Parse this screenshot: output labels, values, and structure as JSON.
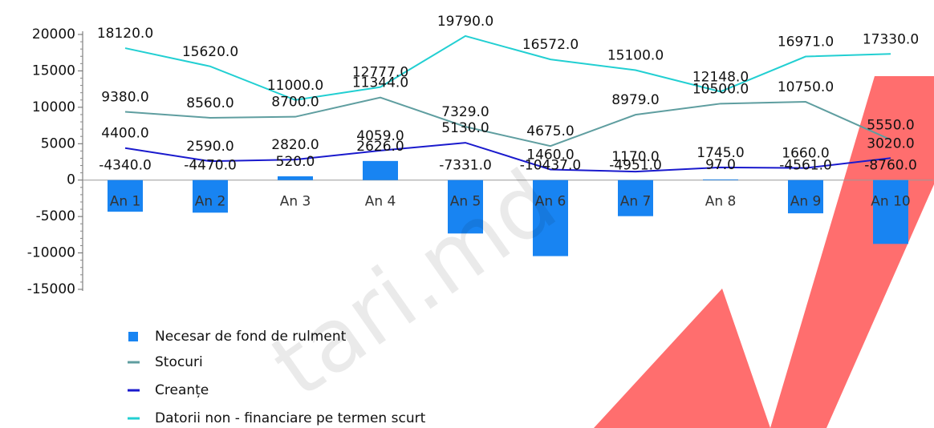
{
  "chart_data": {
    "type": "bar",
    "categories": [
      "An 1",
      "An 2",
      "An 3",
      "An 4",
      "An 5",
      "An 6",
      "An 7",
      "An 8",
      "An 9",
      "An 10"
    ],
    "series": [
      {
        "name": "Necesar de fond de rulment",
        "type": "bar",
        "color": "#1884f2",
        "values": [
          -4340,
          -4470,
          520,
          2626,
          -7331,
          -10437,
          -4951,
          97,
          -4561,
          -8760
        ],
        "value_labels": [
          "-4340.0",
          "-4470.0",
          "520.0",
          "2626.0",
          "-7331.0",
          "-10437.0",
          "-4951.0",
          "97.0",
          "-4561.0",
          "-8760.0"
        ]
      },
      {
        "name": "Stocuri",
        "type": "line",
        "color": "#5f9ea0",
        "values": [
          9380,
          8560,
          8700,
          11344,
          7329,
          4675,
          8979,
          10500,
          10750,
          5550
        ],
        "value_labels": [
          "9380.0",
          "8560.0",
          "8700.0",
          "11344.0",
          "7329.0",
          "4675.0",
          "8979.0",
          "10500.0",
          "10750.0",
          "5550.0"
        ]
      },
      {
        "name": "Creanțe",
        "type": "line",
        "color": "#1a1acd",
        "values": [
          4400,
          2590,
          2820,
          4059,
          5130,
          1460,
          1170,
          1745,
          1660,
          3020
        ],
        "value_labels": [
          "4400.0",
          "2590.0",
          "2820.0",
          "4059.0",
          "5130.0",
          "1460.0",
          "1170.0",
          "1745.0",
          "1660.0",
          "3020.0"
        ]
      },
      {
        "name": "Datorii non - financiare pe termen scurt",
        "type": "line",
        "color": "#22cfd2",
        "values": [
          18120,
          15620,
          11000,
          12777,
          19790,
          16572,
          15100,
          12148,
          16971,
          17330
        ],
        "value_labels": [
          "18120.0",
          "15620.0",
          "11000.0",
          "12777.0",
          "19790.0",
          "16572.0",
          "15100.0",
          "12148.0",
          "16971.0",
          "17330.0"
        ]
      }
    ],
    "ylim": [
      -15000,
      20000
    ],
    "yticks": [
      -15000,
      -10000,
      -5000,
      0,
      5000,
      10000,
      15000,
      20000
    ],
    "grid": false,
    "watermark": "tari.md"
  }
}
